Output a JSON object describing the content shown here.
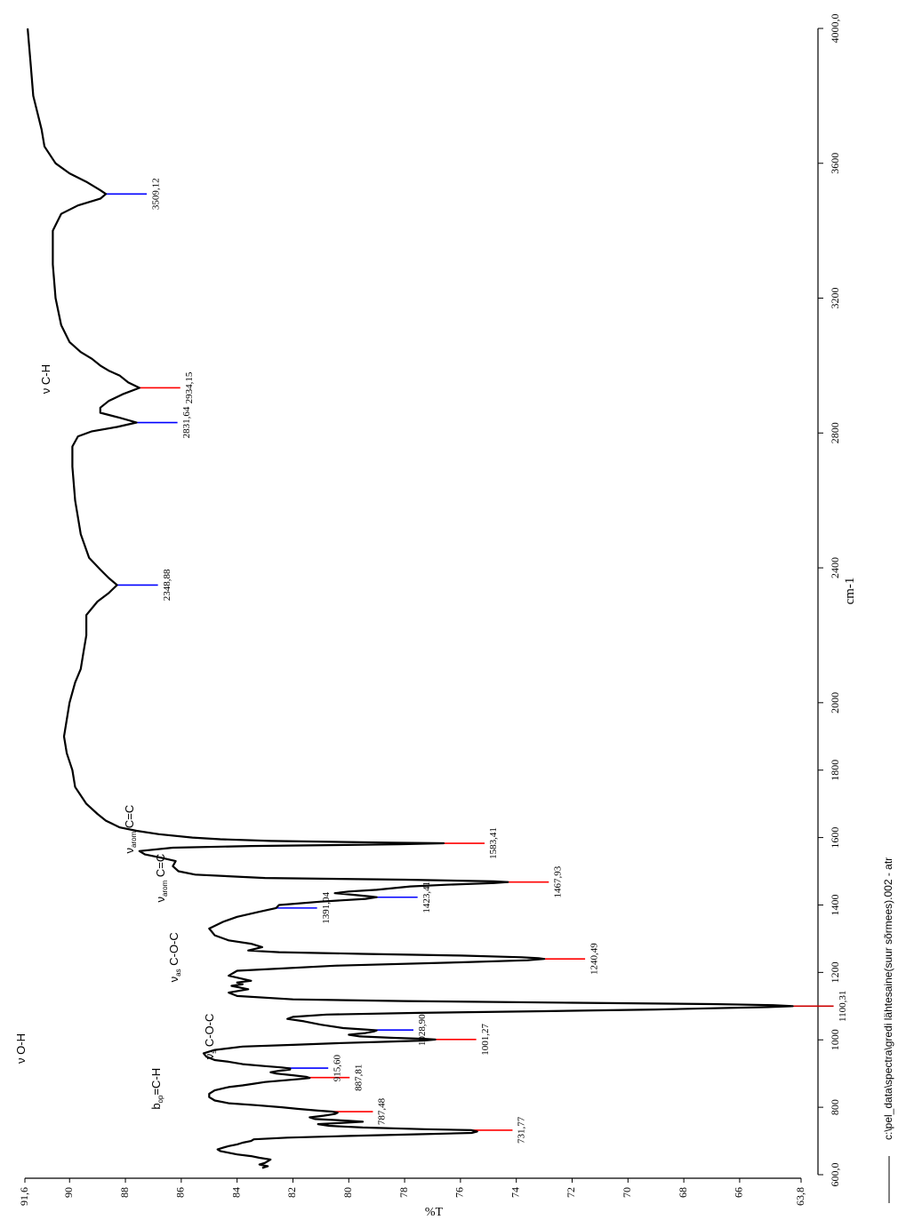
{
  "chart_data": {
    "type": "line",
    "title": "",
    "xlabel": "cm-1",
    "ylabel": "%T",
    "x_axis_reversed": true,
    "x_range": [
      4000.0,
      600.0
    ],
    "y_range": [
      63.8,
      91.6
    ],
    "x_ticks": [
      "4000,0",
      "3600",
      "3200",
      "2800",
      "2400",
      "2000",
      "1800",
      "1600",
      "1400",
      "1200",
      "1000",
      "800",
      "600,0"
    ],
    "x_tick_values": [
      4000,
      3600,
      3200,
      2800,
      2400,
      2000,
      1800,
      1600,
      1400,
      1200,
      1000,
      800,
      600
    ],
    "y_ticks": [
      "91,6",
      "90",
      "88",
      "86",
      "84",
      "82",
      "80",
      "78",
      "76",
      "74",
      "72",
      "70",
      "68",
      "66",
      "63,8"
    ],
    "y_tick_values": [
      91.6,
      90,
      88,
      86,
      84,
      82,
      80,
      78,
      76,
      74,
      72,
      70,
      68,
      66,
      63.8
    ],
    "legend": "c:\\pel_data\\spectra\\gredi lähtesaine(suur sõrmees).002 - atr",
    "legend_placement": "bottom-left",
    "series": [
      {
        "color": "#000000",
        "x": [
          4000,
          3900,
          3800,
          3700,
          3650,
          3600,
          3570,
          3545,
          3520,
          3509,
          3495,
          3475,
          3450,
          3400,
          3300,
          3200,
          3120,
          3070,
          3040,
          3020,
          3000,
          2985,
          2970,
          2950,
          2934,
          2915,
          2895,
          2875,
          2860,
          2845,
          2831,
          2818,
          2805,
          2790,
          2760,
          2700,
          2600,
          2500,
          2430,
          2395,
          2370,
          2349,
          2325,
          2300,
          2260,
          2200,
          2150,
          2100,
          2060,
          2000,
          1950,
          1900,
          1850,
          1800,
          1750,
          1700,
          1670,
          1650,
          1630,
          1620,
          1610,
          1600,
          1595,
          1590,
          1585,
          1583,
          1580,
          1575,
          1570,
          1560,
          1550,
          1540,
          1530,
          1515,
          1500,
          1490,
          1480,
          1475,
          1470,
          1468,
          1465,
          1460,
          1455,
          1445,
          1440,
          1435,
          1430,
          1425,
          1423,
          1418,
          1410,
          1400,
          1391,
          1380,
          1365,
          1350,
          1330,
          1310,
          1295,
          1285,
          1275,
          1265,
          1260,
          1255,
          1250,
          1245,
          1242,
          1240,
          1236,
          1230,
          1220,
          1205,
          1190,
          1175,
          1170,
          1165,
          1160,
          1150,
          1140,
          1130,
          1120,
          1115,
          1110,
          1106,
          1103,
          1100,
          1097,
          1090,
          1085,
          1080,
          1075,
          1068,
          1062,
          1055,
          1045,
          1035,
          1030,
          1028,
          1025,
          1020,
          1015,
          1010,
          1006,
          1003,
          1001,
          998,
          995,
          990,
          985,
          980,
          970,
          960,
          950,
          940,
          935,
          928,
          922,
          918,
          915,
          912,
          908,
          904,
          900,
          895,
          890,
          887,
          884,
          880,
          875,
          870,
          865,
          860,
          850,
          840,
          830,
          820,
          812,
          806,
          800,
          795,
          790,
          787,
          784,
          780,
          775,
          770,
          765,
          760,
          757,
          754,
          750,
          745,
          740,
          735,
          732,
          728,
          724,
          720,
          715,
          710,
          705,
          700,
          695,
          690,
          685,
          680,
          675,
          670,
          665,
          660,
          655,
          650,
          645,
          640,
          635,
          630,
          625,
          620
        ],
        "y": [
          91.5,
          91.4,
          91.3,
          91.0,
          90.9,
          90.5,
          90.0,
          89.4,
          88.9,
          88.7,
          88.9,
          89.7,
          90.3,
          90.6,
          90.6,
          90.5,
          90.3,
          90.0,
          89.6,
          89.2,
          88.9,
          88.6,
          88.2,
          87.9,
          87.5,
          88.1,
          88.6,
          88.9,
          88.9,
          88.2,
          87.6,
          88.3,
          89.2,
          89.7,
          89.9,
          89.9,
          89.8,
          89.6,
          89.3,
          88.9,
          88.6,
          88.3,
          88.6,
          89.0,
          89.4,
          89.4,
          89.5,
          89.6,
          89.8,
          90.0,
          90.1,
          90.2,
          90.1,
          89.9,
          89.8,
          89.4,
          89.0,
          88.7,
          88.2,
          87.6,
          86.8,
          85.6,
          84.6,
          82.8,
          78.5,
          76.6,
          78.2,
          83.5,
          86.3,
          87.5,
          87.3,
          86.7,
          86.2,
          86.3,
          86.1,
          85.5,
          83.0,
          78.0,
          74.8,
          74.3,
          74.8,
          76.5,
          77.8,
          79.0,
          80.0,
          80.5,
          79.8,
          79.2,
          79.0,
          79.4,
          81.0,
          82.5,
          82.6,
          83.2,
          84.0,
          84.5,
          85.0,
          84.8,
          84.3,
          83.5,
          83.1,
          83.6,
          82.5,
          79.5,
          76.0,
          73.8,
          73.2,
          73.0,
          73.6,
          76.0,
          80.5,
          84.0,
          84.3,
          83.5,
          84.0,
          83.8,
          84.2,
          83.6,
          84.3,
          84.0,
          82.0,
          78.0,
          72.0,
          67.0,
          64.8,
          64.1,
          65.0,
          69.0,
          73.0,
          77.5,
          80.8,
          82.0,
          82.2,
          81.6,
          81.0,
          80.2,
          79.3,
          79.0,
          79.1,
          79.4,
          80.0,
          79.6,
          78.4,
          77.3,
          76.9,
          77.3,
          78.4,
          80.4,
          82.0,
          83.8,
          84.8,
          85.2,
          85.1,
          84.8,
          84.3,
          83.8,
          83.0,
          82.4,
          82.1,
          82.1,
          82.5,
          82.8,
          82.6,
          82.0,
          81.5,
          81.4,
          81.7,
          82.3,
          83.0,
          83.4,
          83.8,
          84.3,
          84.8,
          85.0,
          85.0,
          84.8,
          84.3,
          83.3,
          82.4,
          81.8,
          81.1,
          80.6,
          80.4,
          80.5,
          80.9,
          81.4,
          81.2,
          80.0,
          79.5,
          80.2,
          81.1,
          80.7,
          79.5,
          77.3,
          75.6,
          75.4,
          75.6,
          77.5,
          80.0,
          82.2,
          83.4,
          83.5,
          83.8,
          84.0,
          84.3,
          84.5,
          84.7,
          84.6,
          84.3,
          84.0,
          83.5,
          83.2,
          82.8,
          82.9,
          83.0,
          83.2,
          82.9,
          83.1
        ]
      }
    ],
    "peak_labels": [
      {
        "label": "3509,12",
        "x": 3509,
        "color": "#0000ff"
      },
      {
        "label": "2934,15",
        "x": 2934,
        "color": "#ff0000"
      },
      {
        "label": "2831,64",
        "x": 2831,
        "color": "#0000ff"
      },
      {
        "label": "2348,88",
        "x": 2349,
        "color": "#0000ff"
      },
      {
        "label": "1583,41",
        "x": 1583,
        "color": "#ff0000"
      },
      {
        "label": "1467,93",
        "x": 1468,
        "color": "#ff0000"
      },
      {
        "label": "1423,41",
        "x": 1423,
        "color": "#0000ff"
      },
      {
        "label": "1391,04",
        "x": 1391,
        "color": "#0000ff"
      },
      {
        "label": "1240,49",
        "x": 1240,
        "color": "#ff0000"
      },
      {
        "label": "1100,31",
        "x": 1100,
        "color": "#cc0000"
      },
      {
        "label": "1028,90",
        "x": 1029,
        "color": "#0000ff"
      },
      {
        "label": "1001,27",
        "x": 1001,
        "color": "#ff0000"
      },
      {
        "label": "915,60",
        "x": 916,
        "color": "#0000ff"
      },
      {
        "label": "887,81",
        "x": 888,
        "color": "#ff0000"
      },
      {
        "label": "787,48",
        "x": 787,
        "color": "#ff0000"
      },
      {
        "label": "731,77",
        "x": 732,
        "color": "#ff0000"
      }
    ],
    "annotations": [
      {
        "id": "oh",
        "main": "ν O-H",
        "sub": "",
        "tail": ""
      },
      {
        "id": "ch",
        "main": "ν C-H",
        "sub": "",
        "tail": ""
      },
      {
        "id": "cc1",
        "main": "ν",
        "sub": "arom",
        "tail": " C=C"
      },
      {
        "id": "cc2",
        "main": "ν",
        "sub": "arom",
        "tail": " C=C"
      },
      {
        "id": "coc-as",
        "main": "ν",
        "sub": "as",
        "tail": " C-O-C"
      },
      {
        "id": "coc-s",
        "main": "ν",
        "sub": "s",
        "tail": " C-O-C"
      },
      {
        "id": "ch-oop",
        "main": "b",
        "sub": "op",
        "tail": "=C-H"
      }
    ]
  }
}
